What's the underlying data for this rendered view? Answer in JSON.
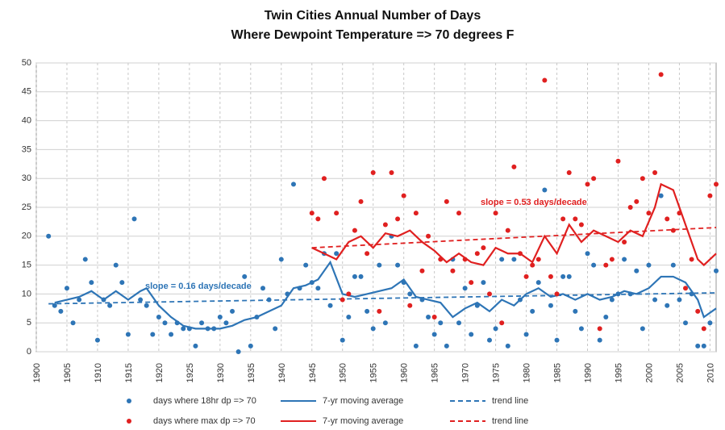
{
  "chart_data": {
    "type": "scatter",
    "title": [
      "Twin Cities Annual Number of Days",
      "Where Dewpoint Temperature => 70 degrees F"
    ],
    "xlim": [
      1900,
      2011
    ],
    "ylim": [
      0,
      50
    ],
    "xticks": [
      1900,
      1905,
      1910,
      1915,
      1920,
      1925,
      1930,
      1935,
      1940,
      1945,
      1950,
      1955,
      1960,
      1965,
      1970,
      1975,
      1980,
      1985,
      1990,
      1995,
      2000,
      2005,
      2010
    ],
    "yticks": [
      0,
      5,
      10,
      15,
      20,
      25,
      30,
      35,
      40,
      45,
      50
    ],
    "grid": true,
    "annotations": [
      {
        "text": "slope = 0.16 days/decade",
        "color": "#2e75b6"
      },
      {
        "text": "slope = 0.53 days/decade",
        "color": "#e02020"
      }
    ],
    "series": [
      {
        "name": "days where 18hr dp => 70",
        "color": "#2e75b6",
        "style": "markers",
        "x": [
          1902,
          1903,
          1904,
          1905,
          1906,
          1907,
          1908,
          1909,
          1910,
          1911,
          1912,
          1913,
          1914,
          1915,
          1916,
          1917,
          1918,
          1919,
          1920,
          1921,
          1922,
          1923,
          1924,
          1925,
          1926,
          1927,
          1928,
          1929,
          1930,
          1931,
          1932,
          1933,
          1934,
          1935,
          1936,
          1937,
          1938,
          1939,
          1940,
          1941,
          1942,
          1943,
          1944,
          1945,
          1946,
          1947,
          1948,
          1949,
          1950,
          1951,
          1952,
          1953,
          1954,
          1955,
          1956,
          1957,
          1958,
          1959,
          1960,
          1961,
          1962,
          1963,
          1964,
          1965,
          1966,
          1967,
          1968,
          1969,
          1970,
          1971,
          1972,
          1973,
          1974,
          1975,
          1976,
          1977,
          1978,
          1979,
          1980,
          1981,
          1982,
          1983,
          1984,
          1985,
          1986,
          1987,
          1988,
          1989,
          1990,
          1991,
          1992,
          1993,
          1994,
          1995,
          1996,
          1997,
          1998,
          1999,
          2000,
          2001,
          2002,
          2003,
          2004,
          2005,
          2006,
          2007,
          2008,
          2009,
          2010,
          2011
        ],
        "values": [
          20,
          8,
          7,
          11,
          5,
          9,
          16,
          12,
          2,
          9,
          8,
          15,
          12,
          3,
          23,
          9,
          8,
          3,
          6,
          5,
          3,
          5,
          4,
          4,
          1,
          5,
          4,
          4,
          6,
          5,
          7,
          0,
          13,
          1,
          6,
          11,
          9,
          4,
          16,
          10,
          29,
          11,
          15,
          12,
          11,
          17,
          8,
          17,
          2,
          6,
          13,
          13,
          7,
          4,
          15,
          5,
          20,
          15,
          12,
          10,
          1,
          9,
          6,
          3,
          5,
          1,
          16,
          5,
          11,
          3,
          8,
          12,
          2,
          4,
          16,
          1,
          16,
          9,
          3,
          7,
          12,
          28,
          8,
          2,
          13,
          13,
          7,
          4,
          17,
          15,
          2,
          6,
          9,
          10,
          16,
          10,
          14,
          4,
          15,
          9,
          27,
          8,
          15,
          9,
          5,
          10,
          1,
          1,
          5,
          14
        ]
      },
      {
        "name": "7-yr moving average",
        "color": "#2e75b6",
        "style": "line",
        "x": [
          1903,
          1905,
          1907,
          1909,
          1911,
          1913,
          1915,
          1917,
          1918,
          1920,
          1922,
          1924,
          1926,
          1928,
          1930,
          1932,
          1934,
          1936,
          1938,
          1940,
          1942,
          1944,
          1946,
          1948,
          1950,
          1952,
          1954,
          1956,
          1958,
          1960,
          1962,
          1964,
          1966,
          1968,
          1970,
          1972,
          1974,
          1976,
          1978,
          1980,
          1982,
          1984,
          1986,
          1988,
          1990,
          1992,
          1994,
          1996,
          1998,
          2000,
          2002,
          2004,
          2006,
          2008,
          2009,
          2011
        ],
        "values": [
          8.5,
          9,
          9.5,
          10.5,
          9,
          10.5,
          9,
          10.5,
          11,
          8,
          6,
          4.5,
          4,
          4,
          4,
          4.5,
          5.5,
          6,
          7,
          8,
          11,
          11.5,
          12.5,
          15.5,
          10,
          9.5,
          10,
          10.5,
          11,
          12.5,
          9.5,
          9,
          8.5,
          6,
          7.5,
          8.5,
          7,
          9,
          8,
          10,
          11,
          9.5,
          10,
          9,
          10,
          9,
          9.5,
          10.5,
          10,
          11,
          13,
          13,
          12,
          9,
          6,
          7.5
        ]
      },
      {
        "name": "trend line",
        "color": "#2e75b6",
        "style": "dashed",
        "x": [
          1902,
          2011
        ],
        "values": [
          8.3,
          10.2
        ]
      },
      {
        "name": "days where max dp => 70",
        "color": "#e02020",
        "style": "markers",
        "x": [
          1945,
          1946,
          1947,
          1949,
          1950,
          1951,
          1952,
          1953,
          1954,
          1955,
          1956,
          1957,
          1958,
          1959,
          1960,
          1961,
          1962,
          1963,
          1964,
          1965,
          1966,
          1967,
          1968,
          1969,
          1970,
          1971,
          1972,
          1973,
          1974,
          1975,
          1976,
          1977,
          1978,
          1979,
          1980,
          1981,
          1982,
          1983,
          1984,
          1985,
          1986,
          1987,
          1988,
          1989,
          1990,
          1991,
          1992,
          1993,
          1994,
          1995,
          1996,
          1997,
          1998,
          1999,
          2000,
          2001,
          2002,
          2003,
          2004,
          2005,
          2006,
          2007,
          2008,
          2009,
          2010,
          2011
        ],
        "values": [
          24,
          23,
          30,
          24,
          9,
          10,
          21,
          26,
          17,
          31,
          7,
          22,
          31,
          23,
          27,
          8,
          24,
          14,
          20,
          6,
          16,
          26,
          14,
          24,
          16,
          12,
          17,
          18,
          10,
          24,
          5,
          21,
          32,
          17,
          13,
          15,
          16,
          47,
          13,
          10,
          23,
          31,
          23,
          22,
          29,
          30,
          4,
          15,
          16,
          33,
          19,
          25,
          26,
          30,
          24,
          31,
          48,
          23,
          21,
          24,
          11,
          16,
          7,
          4,
          27,
          29
        ]
      },
      {
        "name": "7-yr moving average",
        "color": "#e02020",
        "style": "line",
        "x": [
          1945,
          1947,
          1949,
          1951,
          1953,
          1955,
          1957,
          1959,
          1961,
          1963,
          1965,
          1967,
          1969,
          1971,
          1973,
          1975,
          1977,
          1979,
          1981,
          1983,
          1985,
          1987,
          1989,
          1991,
          1993,
          1995,
          1997,
          1999,
          2001,
          2002,
          2004,
          2006,
          2008,
          2009,
          2011
        ],
        "values": [
          18,
          17,
          16,
          19,
          20,
          18,
          20.5,
          20,
          21,
          19,
          17.5,
          15.5,
          17,
          15.5,
          15,
          18,
          17,
          17,
          15.5,
          20,
          17,
          22,
          19,
          21,
          20,
          19,
          21,
          20,
          25,
          29,
          28,
          22,
          16,
          15,
          17
        ]
      },
      {
        "name": "trend line",
        "color": "#e02020",
        "style": "dashed",
        "x": [
          1945,
          2011
        ],
        "values": [
          18,
          21.5
        ]
      }
    ]
  }
}
